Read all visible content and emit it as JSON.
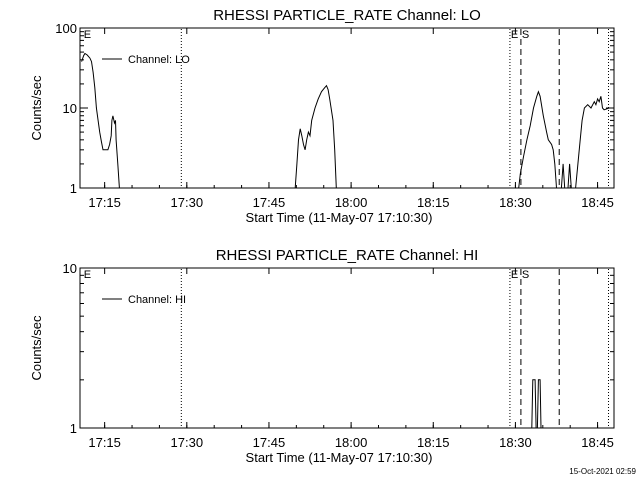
{
  "timestamp": "15-Oct-2021 02:59",
  "markers": {
    "lines": [
      {
        "t": 17.4833,
        "style": "dotted"
      },
      {
        "t": 18.4833,
        "style": "dotted"
      },
      {
        "t": 18.5167,
        "style": "dashed"
      },
      {
        "t": 18.6333,
        "style": "dashed"
      },
      {
        "t": 18.7833,
        "style": "dotted"
      }
    ],
    "labels": [
      {
        "text": "E",
        "t": 17.1833
      },
      {
        "text": "E",
        "t": 18.4833
      },
      {
        "text": "S",
        "t": 18.5167
      }
    ]
  },
  "chart_data": [
    {
      "type": "line",
      "title": "RHESSI PARTICLE_RATE Channel: LO",
      "xlabel": "Start Time (11-May-07 17:10:30)",
      "ylabel": "Counts/sec",
      "xlim": [
        17.175,
        18.8
      ],
      "ylim": [
        1,
        100
      ],
      "yscale": "log",
      "x_ticks": [
        {
          "t": 17.25,
          "label": "17:15"
        },
        {
          "t": 17.5,
          "label": "17:30"
        },
        {
          "t": 17.75,
          "label": "17:45"
        },
        {
          "t": 18.0,
          "label": "18:00"
        },
        {
          "t": 18.25,
          "label": "18:15"
        },
        {
          "t": 18.5,
          "label": "18:30"
        },
        {
          "t": 18.75,
          "label": "18:45"
        }
      ],
      "y_ticks": [
        {
          "v": 1,
          "label": "1"
        },
        {
          "v": 10,
          "label": "10"
        },
        {
          "v": 100,
          "label": "100"
        }
      ],
      "legend": {
        "label": "Channel: LO",
        "position": "top-left"
      },
      "grid": false,
      "series": [
        {
          "name": "Channel: LO",
          "segments": [
            [
              [
                17.18,
                38
              ],
              [
                17.186,
                45
              ],
              [
                17.19,
                48
              ],
              [
                17.197,
                46
              ],
              [
                17.205,
                42
              ],
              [
                17.21,
                38
              ],
              [
                17.215,
                28
              ],
              [
                17.22,
                18
              ],
              [
                17.225,
                10
              ],
              [
                17.23,
                7
              ],
              [
                17.235,
                5
              ],
              [
                17.24,
                3.8
              ],
              [
                17.245,
                3.0
              ],
              [
                17.26,
                3.0
              ],
              [
                17.265,
                3.5
              ],
              [
                17.27,
                4.5
              ],
              [
                17.272,
                7
              ],
              [
                17.275,
                8
              ],
              [
                17.28,
                6.5
              ],
              [
                17.283,
                7
              ],
              [
                17.285,
                4
              ],
              [
                17.29,
                2
              ],
              [
                17.295,
                1
              ]
            ],
            [
              [
                17.83,
                1
              ],
              [
                17.835,
                2
              ],
              [
                17.84,
                4
              ],
              [
                17.845,
                5.5
              ],
              [
                17.85,
                4.5
              ],
              [
                17.855,
                3.5
              ],
              [
                17.86,
                3
              ],
              [
                17.865,
                4
              ],
              [
                17.87,
                5
              ],
              [
                17.875,
                4.5
              ],
              [
                17.88,
                7
              ],
              [
                17.89,
                10
              ],
              [
                17.9,
                13
              ],
              [
                17.91,
                16
              ],
              [
                17.92,
                18
              ],
              [
                17.925,
                19
              ],
              [
                17.93,
                17
              ],
              [
                17.935,
                13
              ],
              [
                17.945,
                7
              ],
              [
                17.95,
                3
              ],
              [
                17.955,
                1
              ]
            ],
            [
              [
                18.51,
                1
              ],
              [
                18.515,
                1.5
              ],
              [
                18.525,
                2.5
              ],
              [
                18.535,
                4
              ],
              [
                18.545,
                6
              ],
              [
                18.555,
                10
              ],
              [
                18.565,
                14
              ],
              [
                18.57,
                16
              ],
              [
                18.575,
                14
              ],
              [
                18.585,
                8
              ],
              [
                18.595,
                5
              ],
              [
                18.6,
                4
              ],
              [
                18.61,
                3.5
              ],
              [
                18.615,
                3.0
              ],
              [
                18.62,
                2
              ],
              [
                18.625,
                1
              ]
            ],
            [
              [
                18.64,
                1
              ],
              [
                18.645,
                2
              ],
              [
                18.65,
                1
              ]
            ],
            [
              [
                18.66,
                1
              ],
              [
                18.665,
                2
              ],
              [
                18.67,
                1
              ]
            ],
            [
              [
                18.683,
                1
              ],
              [
                18.69,
                2
              ],
              [
                18.697,
                4
              ],
              [
                18.703,
                7
              ],
              [
                18.71,
                10
              ],
              [
                18.72,
                11
              ],
              [
                18.73,
                10
              ],
              [
                18.74,
                12
              ],
              [
                18.745,
                11
              ],
              [
                18.75,
                13
              ],
              [
                18.755,
                12
              ],
              [
                18.76,
                14
              ],
              [
                18.765,
                10
              ],
              [
                18.77,
                9.5
              ],
              [
                18.785,
                10
              ]
            ]
          ]
        }
      ]
    },
    {
      "type": "line",
      "title": "RHESSI PARTICLE_RATE Channel: HI",
      "xlabel": "Start Time (11-May-07 17:10:30)",
      "ylabel": "Counts/sec",
      "xlim": [
        17.175,
        18.8
      ],
      "ylim": [
        1,
        10
      ],
      "yscale": "log",
      "x_ticks": [
        {
          "t": 17.25,
          "label": "17:15"
        },
        {
          "t": 17.5,
          "label": "17:30"
        },
        {
          "t": 17.75,
          "label": "17:45"
        },
        {
          "t": 18.0,
          "label": "18:00"
        },
        {
          "t": 18.25,
          "label": "18:15"
        },
        {
          "t": 18.5,
          "label": "18:30"
        },
        {
          "t": 18.75,
          "label": "18:45"
        }
      ],
      "y_ticks": [
        {
          "v": 1,
          "label": "1"
        },
        {
          "v": 10,
          "label": "10"
        }
      ],
      "legend": {
        "label": "Channel: HI",
        "position": "top-left"
      },
      "grid": false,
      "series": [
        {
          "name": "Channel: HI",
          "segments": [
            [
              [
                18.55,
                1
              ],
              [
                18.553,
                2
              ],
              [
                18.56,
                2
              ],
              [
                18.563,
                1
              ]
            ],
            [
              [
                18.567,
                1
              ],
              [
                18.57,
                2
              ],
              [
                18.575,
                2
              ],
              [
                18.578,
                1
              ]
            ]
          ]
        }
      ]
    }
  ]
}
